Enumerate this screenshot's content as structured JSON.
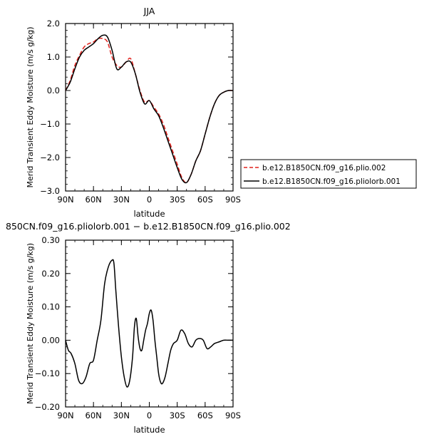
{
  "chart_data": [
    {
      "type": "line",
      "title": "JJA",
      "xlabel": "latitude",
      "ylabel": "Merid Transient Eddy Moisture (m/s g/kg)",
      "xlim": [
        90,
        -90
      ],
      "ylim": [
        -3.0,
        2.0
      ],
      "x_ticks": [
        90,
        60,
        30,
        0,
        -30,
        -60,
        -90
      ],
      "x_tick_labels": [
        "90N",
        "60N",
        "30N",
        "0",
        "30S",
        "60S",
        "90S"
      ],
      "y_ticks": [
        2.0,
        1.0,
        0.0,
        -1.0,
        -2.0,
        -3.0
      ],
      "y_tick_labels": [
        "2.0",
        "1.0",
        "0.0",
        "−1.0",
        "−2.0",
        "−3.0"
      ],
      "legend_position": "right",
      "series": [
        {
          "name": "b.e12.B1850CN.f09_g16.plio.002",
          "color": "#e0201b",
          "dash": "dashed",
          "x": [
            90,
            85,
            80,
            75,
            70,
            65,
            60,
            55,
            50,
            45,
            40,
            35,
            30,
            25,
            20,
            15,
            10,
            5,
            0,
            -5,
            -10,
            -15,
            -20,
            -25,
            -30,
            -35,
            -40,
            -45,
            -50,
            -55,
            -60,
            -65,
            -70,
            -75,
            -80,
            -85,
            -90
          ],
          "values": [
            0.0,
            0.3,
            0.75,
            1.05,
            1.3,
            1.4,
            1.45,
            1.55,
            1.55,
            1.45,
            1.0,
            0.75,
            0.7,
            0.85,
            0.95,
            0.5,
            0.0,
            -0.35,
            -0.3,
            -0.5,
            -0.7,
            -1.0,
            -1.4,
            -1.8,
            -2.2,
            -2.6,
            -2.75,
            -2.5,
            -2.1,
            -1.8,
            -1.3,
            -0.8,
            -0.4,
            -0.15,
            -0.05,
            0.0,
            0.0
          ]
        },
        {
          "name": "b.e12.B1850CN.f09_g16.pliolorb.001",
          "color": "#000000",
          "dash": "solid",
          "x": [
            90,
            85,
            80,
            75,
            70,
            65,
            60,
            55,
            50,
            45,
            40,
            35,
            30,
            25,
            20,
            15,
            10,
            5,
            0,
            -5,
            -10,
            -15,
            -20,
            -25,
            -30,
            -35,
            -40,
            -45,
            -50,
            -55,
            -60,
            -65,
            -70,
            -75,
            -80,
            -85,
            -90
          ],
          "values": [
            0.0,
            0.25,
            0.65,
            1.0,
            1.2,
            1.3,
            1.4,
            1.55,
            1.65,
            1.6,
            1.2,
            0.65,
            0.7,
            0.85,
            0.85,
            0.5,
            -0.05,
            -0.4,
            -0.3,
            -0.55,
            -0.75,
            -1.1,
            -1.5,
            -1.9,
            -2.3,
            -2.65,
            -2.75,
            -2.5,
            -2.1,
            -1.8,
            -1.3,
            -0.8,
            -0.4,
            -0.15,
            -0.05,
            0.0,
            0.0
          ]
        }
      ]
    },
    {
      "type": "line",
      "title": "850CN.f09_g16.pliolorb.001 − b.e12.B1850CN.f09_g16.plio.002",
      "xlabel": "latitude",
      "ylabel": "Merid Transient Eddy Moisture (m/s g/kg)",
      "xlim": [
        90,
        -90
      ],
      "ylim": [
        -0.2,
        0.3
      ],
      "x_ticks": [
        90,
        60,
        30,
        0,
        -30,
        -60,
        -90
      ],
      "x_tick_labels": [
        "90N",
        "60N",
        "30N",
        "0",
        "30S",
        "60S",
        "90S"
      ],
      "y_ticks": [
        0.3,
        0.2,
        0.1,
        0.0,
        -0.1,
        -0.2
      ],
      "y_tick_labels": [
        "0.30",
        "0.20",
        "0.10",
        "0.00",
        "−0.10",
        "−0.20"
      ],
      "series": [
        {
          "color": "#000000",
          "dash": "solid",
          "x": [
            90,
            87,
            84,
            80,
            76,
            72,
            68,
            64,
            60,
            56,
            52,
            48,
            44,
            40,
            38,
            36,
            33,
            30,
            27,
            24,
            21,
            18,
            16,
            14,
            12,
            10,
            8,
            6,
            4,
            2,
            0,
            -2,
            -4,
            -6,
            -8,
            -10,
            -12,
            -14,
            -17,
            -20,
            -23,
            -26,
            -30,
            -34,
            -38,
            -42,
            -46,
            -50,
            -54,
            -58,
            -62,
            -66,
            -70,
            -75,
            -80,
            -85,
            -90
          ],
          "values": [
            0.0,
            -0.03,
            -0.04,
            -0.07,
            -0.12,
            -0.13,
            -0.11,
            -0.07,
            -0.06,
            0.0,
            0.06,
            0.17,
            0.22,
            0.24,
            0.23,
            0.15,
            0.04,
            -0.05,
            -0.11,
            -0.14,
            -0.12,
            -0.05,
            0.04,
            0.065,
            0.01,
            -0.025,
            -0.03,
            0.0,
            0.03,
            0.05,
            0.08,
            0.09,
            0.06,
            0.0,
            -0.05,
            -0.1,
            -0.125,
            -0.13,
            -0.11,
            -0.07,
            -0.03,
            -0.01,
            0.0,
            0.03,
            0.02,
            -0.01,
            -0.02,
            0.0,
            0.005,
            0.0,
            -0.025,
            -0.02,
            -0.01,
            -0.005,
            0.0,
            0.0,
            0.0
          ]
        }
      ]
    }
  ]
}
